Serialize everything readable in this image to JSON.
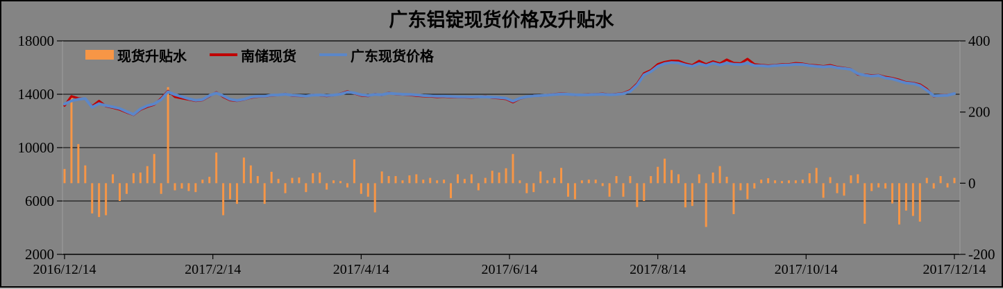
{
  "title": "广东铝锭现货价格及升贴水",
  "colors": {
    "background": "#848484",
    "frame_border": "#000000",
    "gridline": "#000000",
    "side_border": "#9e9e9e",
    "text": "#000000",
    "premium_bar": "#F79646",
    "nanchu_line": "#C00000",
    "guangdong_line": "#5B87C9"
  },
  "legend": {
    "items": [
      "现货升贴水",
      "南储现货",
      "广东现货价格"
    ]
  },
  "chart_data": {
    "type": "combo",
    "x_axis": {
      "tick_labels": [
        "2016/12/14",
        "2017/2/14",
        "2017/4/14",
        "2017/6/14",
        "2017/8/14",
        "2017/10/14",
        "2017/12/14"
      ],
      "grid": false
    },
    "y_axis_left": {
      "min": 2000,
      "max": 18000,
      "ticks": [
        18000,
        14000,
        10000,
        6000,
        2000
      ],
      "grid": true
    },
    "y_axis_right": {
      "min": -200,
      "max": 400,
      "ticks": [
        400,
        200,
        0,
        -200
      ],
      "grid": false
    },
    "legend_position": "top-left",
    "series": [
      {
        "name": "现货升贴水",
        "type": "bar",
        "axis": "right",
        "color": "#F79646",
        "values": [
          40,
          240,
          110,
          50,
          -85,
          -95,
          -90,
          25,
          -50,
          -30,
          28,
          30,
          48,
          82,
          -30,
          270,
          -20,
          -15,
          -22,
          -25,
          10,
          18,
          86,
          -90,
          -45,
          -58,
          72,
          50,
          20,
          -58,
          32,
          12,
          -28,
          15,
          16,
          -25,
          28,
          30,
          -18,
          8,
          6,
          -12,
          67,
          -30,
          -38,
          -82,
          33,
          20,
          20,
          8,
          22,
          25,
          10,
          15,
          8,
          10,
          -42,
          25,
          12,
          25,
          -20,
          15,
          35,
          30,
          42,
          82,
          8,
          -28,
          -25,
          33,
          8,
          15,
          43,
          -38,
          -45,
          8,
          10,
          10,
          -8,
          -38,
          20,
          -38,
          20,
          -67,
          -50,
          20,
          46,
          69,
          37,
          25,
          -68,
          -64,
          25,
          -123,
          30,
          48,
          18,
          -87,
          -20,
          -45,
          -15,
          10,
          14,
          8,
          6,
          8,
          8,
          10,
          28,
          43,
          -41,
          17,
          -28,
          -35,
          22,
          25,
          -114,
          -22,
          -12,
          -15,
          -57,
          -116,
          -77,
          -92,
          -108,
          15,
          -15,
          20,
          -12,
          15
        ]
      },
      {
        "name": "南储现货",
        "type": "line",
        "axis": "left",
        "color": "#C00000",
        "values": [
          13150,
          13850,
          13700,
          13650,
          13100,
          13500,
          13100,
          12990,
          12850,
          12640,
          12450,
          12840,
          13060,
          13220,
          13700,
          14250,
          13800,
          13700,
          13600,
          13500,
          13560,
          13850,
          14150,
          13800,
          13560,
          13500,
          13590,
          13740,
          13820,
          13840,
          13900,
          13930,
          14030,
          13880,
          13870,
          13850,
          13960,
          13920,
          13860,
          13920,
          14040,
          14220,
          14060,
          13900,
          13860,
          14020,
          13930,
          14120,
          14000,
          13980,
          13950,
          13890,
          13850,
          13840,
          13790,
          13820,
          13780,
          13770,
          13770,
          13750,
          13780,
          13840,
          13740,
          13700,
          13640,
          13400,
          13660,
          13800,
          13900,
          13880,
          13960,
          14010,
          14050,
          14020,
          13940,
          13970,
          13990,
          14010,
          14040,
          13980,
          14020,
          14090,
          14300,
          14800,
          15570,
          15800,
          16250,
          16420,
          16510,
          16500,
          16300,
          16180,
          16500,
          16250,
          16460,
          16300,
          16600,
          16350,
          16310,
          16650,
          16250,
          16200,
          16150,
          16190,
          16240,
          16250,
          16330,
          16290,
          16200,
          16160,
          16100,
          16180,
          16040,
          15980,
          15890,
          15480,
          15470,
          15420,
          15440,
          15300,
          15210,
          15080,
          14900,
          14850,
          14730,
          14400,
          13840,
          13940,
          13950,
          14070
        ]
      },
      {
        "name": "广东现货价格",
        "type": "line",
        "axis": "left",
        "color": "#5B87C9",
        "values": [
          13270,
          13500,
          13620,
          13680,
          13030,
          13300,
          13150,
          13050,
          12930,
          12700,
          12490,
          12900,
          13140,
          13280,
          13600,
          14180,
          13970,
          13820,
          13660,
          13550,
          13600,
          13900,
          14100,
          13880,
          13620,
          13540,
          13620,
          13780,
          13850,
          13860,
          13930,
          13950,
          14000,
          13920,
          13900,
          13870,
          13940,
          13950,
          13900,
          13940,
          14010,
          14160,
          14100,
          13960,
          13900,
          13990,
          13960,
          14080,
          14030,
          14000,
          13990,
          13950,
          13900,
          13880,
          13850,
          13860,
          13830,
          13810,
          13800,
          13790,
          13800,
          13810,
          13780,
          13750,
          13700,
          13480,
          13700,
          13820,
          13880,
          13900,
          13940,
          13980,
          14010,
          14000,
          13960,
          13950,
          13960,
          13990,
          14000,
          13960,
          13990,
          14040,
          14220,
          14700,
          15450,
          15700,
          16100,
          16300,
          16380,
          16350,
          16200,
          16100,
          16300,
          16150,
          16330,
          16200,
          16350,
          16250,
          16230,
          16350,
          16150,
          16140,
          16100,
          16150,
          16180,
          16200,
          16250,
          16230,
          16150,
          16100,
          16050,
          16100,
          15990,
          15940,
          15860,
          15540,
          15430,
          15360,
          15400,
          15220,
          15150,
          15000,
          14840,
          14800,
          14650,
          14300,
          13880,
          13900,
          13920,
          14050
        ]
      }
    ]
  }
}
